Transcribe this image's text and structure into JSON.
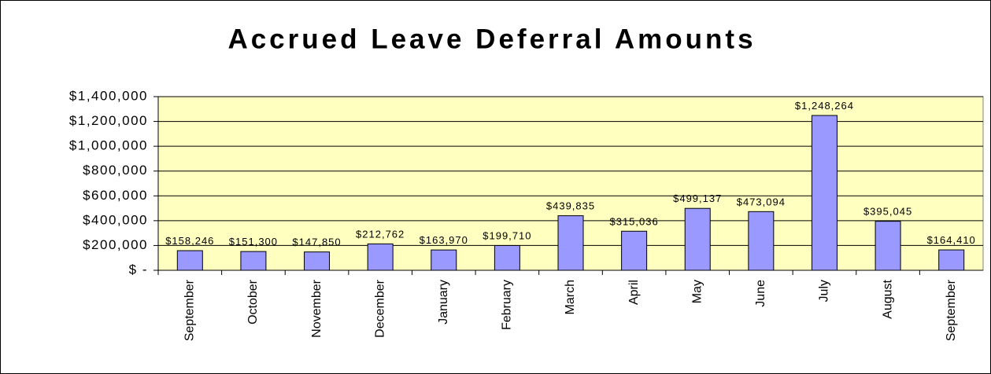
{
  "chart_data": {
    "type": "bar",
    "title": "Accrued Leave Deferral Amounts",
    "categories": [
      "September",
      "October",
      "November",
      "December",
      "January",
      "February",
      "March",
      "April",
      "May",
      "June",
      "July",
      "August",
      "September"
    ],
    "values": [
      158246,
      151300,
      147850,
      212762,
      163970,
      199710,
      439835,
      315036,
      499137,
      473094,
      1248264,
      395045,
      164410
    ],
    "value_labels": [
      "$158,246",
      "$151,300",
      "$147,850",
      "$212,762",
      "$163,970",
      "$199,710",
      "$439,835",
      "$315,036",
      "$499,137",
      "$473,094",
      "$1,248,264",
      "$395,045",
      "$164,410"
    ],
    "color": "#9999ff",
    "ylim": [
      0,
      1400000
    ],
    "yticks": [
      {
        "value": 0,
        "label": "$ -"
      },
      {
        "value": 200000,
        "label": "$200,000"
      },
      {
        "value": 400000,
        "label": "$400,000"
      },
      {
        "value": 600000,
        "label": "$600,000"
      },
      {
        "value": 800000,
        "label": "$800,000"
      },
      {
        "value": 1000000,
        "label": "$1,000,000"
      },
      {
        "value": 1200000,
        "label": "$1,200,000"
      },
      {
        "value": 1400000,
        "label": "$1,400,000"
      }
    ],
    "grid": true
  }
}
